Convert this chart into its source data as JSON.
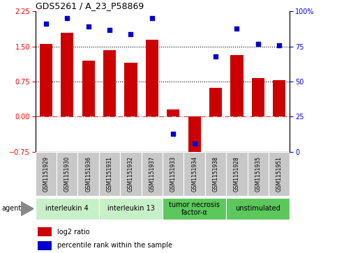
{
  "title": "GDS5261 / A_23_P58869",
  "samples": [
    "GSM1151929",
    "GSM1151930",
    "GSM1151936",
    "GSM1151931",
    "GSM1151932",
    "GSM1151937",
    "GSM1151933",
    "GSM1151934",
    "GSM1151938",
    "GSM1151928",
    "GSM1151935",
    "GSM1151951"
  ],
  "log2_ratio": [
    1.55,
    1.8,
    1.2,
    1.42,
    1.15,
    1.65,
    0.15,
    -0.85,
    0.62,
    1.32,
    0.82,
    0.78
  ],
  "percentile_rank": [
    91,
    95,
    89,
    87,
    84,
    95,
    13,
    6,
    68,
    88,
    77,
    76
  ],
  "agents": [
    {
      "label": "interleukin 4",
      "start": 0,
      "end": 3,
      "color": "#c8f0c8"
    },
    {
      "label": "interleukin 13",
      "start": 3,
      "end": 6,
      "color": "#c8f0c8"
    },
    {
      "label": "tumor necrosis\nfactor-α",
      "start": 6,
      "end": 9,
      "color": "#5cc85c"
    },
    {
      "label": "unstimulated",
      "start": 9,
      "end": 12,
      "color": "#5cc85c"
    }
  ],
  "ylim_left": [
    -0.75,
    2.25
  ],
  "ylim_right": [
    0,
    100
  ],
  "yticks_left": [
    -0.75,
    0,
    0.75,
    1.5,
    2.25
  ],
  "yticks_right": [
    0,
    25,
    50,
    75,
    100
  ],
  "hlines_dotted": [
    0.75,
    1.5
  ],
  "hline_dashdot": 0,
  "bar_color": "#cc0000",
  "dot_color": "#0000cc",
  "bar_width": 0.6,
  "sample_box_color": "#c8c8c8",
  "bg_color": "#ffffff",
  "title_fontsize": 9,
  "tick_fontsize": 7,
  "sample_fontsize": 5.5,
  "agent_fontsize": 7,
  "legend_fontsize": 7
}
